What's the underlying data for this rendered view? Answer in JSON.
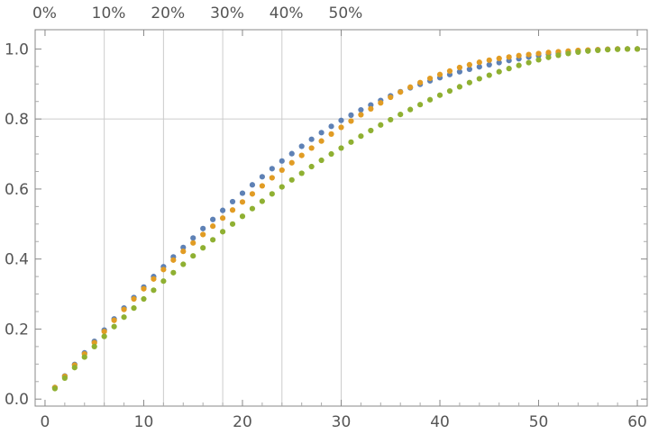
{
  "chart_data": {
    "type": "scatter",
    "title": "",
    "xlabel": "",
    "ylabel": "",
    "xlim": [
      -1,
      61
    ],
    "ylim": [
      -0.02,
      1.055
    ],
    "x_ticks": [
      0,
      10,
      20,
      30,
      40,
      50,
      60
    ],
    "x_tick_labels": [
      "0",
      "10",
      "20",
      "30",
      "40",
      "50",
      "60"
    ],
    "y_ticks": [
      0.0,
      0.2,
      0.4,
      0.6,
      0.8,
      1.0
    ],
    "y_tick_labels": [
      "0.0",
      "0.2",
      "0.4",
      "0.6",
      "0.8",
      "1.0"
    ],
    "top_axis": {
      "ticks": [
        0,
        6,
        12,
        18,
        24,
        30
      ],
      "labels": [
        "0%",
        "10%",
        "20%",
        "30%",
        "40%",
        "50%"
      ]
    },
    "gridlines": {
      "vertical_x": [
        6,
        12,
        18,
        24,
        30
      ],
      "horizontal_y": [
        0.8
      ]
    },
    "legend": "none",
    "series": [
      {
        "color": "#5e81b5",
        "x": [
          1,
          2,
          3,
          4,
          5,
          6,
          7,
          8,
          9,
          10,
          11,
          12,
          13,
          14,
          15,
          16,
          17,
          18,
          19,
          20,
          21,
          22,
          23,
          24,
          25,
          26,
          27,
          28,
          29,
          30,
          31,
          32,
          33,
          34,
          35,
          36,
          37,
          38,
          39,
          40,
          41,
          42,
          43,
          44,
          45,
          46,
          47,
          48,
          49,
          50,
          51,
          52,
          53,
          54,
          55,
          56,
          57,
          58,
          59,
          60
        ],
        "y": [
          0.033,
          0.066,
          0.099,
          0.132,
          0.165,
          0.197,
          0.229,
          0.26,
          0.29,
          0.32,
          0.35,
          0.378,
          0.406,
          0.433,
          0.46,
          0.487,
          0.513,
          0.539,
          0.564,
          0.588,
          0.612,
          0.635,
          0.658,
          0.68,
          0.701,
          0.722,
          0.742,
          0.761,
          0.779,
          0.796,
          0.811,
          0.826,
          0.84,
          0.853,
          0.866,
          0.878,
          0.889,
          0.899,
          0.909,
          0.918,
          0.927,
          0.935,
          0.942,
          0.949,
          0.955,
          0.961,
          0.967,
          0.972,
          0.977,
          0.981,
          0.985,
          0.988,
          0.991,
          0.994,
          0.996,
          0.998,
          0.999,
          1.0,
          1.0,
          1.0
        ]
      },
      {
        "color": "#e19c24",
        "x": [
          1,
          2,
          3,
          4,
          5,
          6,
          7,
          8,
          9,
          10,
          11,
          12,
          13,
          14,
          15,
          16,
          17,
          18,
          19,
          20,
          21,
          22,
          23,
          24,
          25,
          26,
          27,
          28,
          29,
          30,
          31,
          32,
          33,
          34,
          35,
          36,
          37,
          38,
          39,
          40,
          41,
          42,
          43,
          44,
          45,
          46,
          47,
          48,
          49,
          50,
          51,
          52,
          53,
          54,
          55,
          56,
          57,
          58,
          59,
          60
        ],
        "y": [
          0.033,
          0.065,
          0.097,
          0.129,
          0.161,
          0.193,
          0.225,
          0.256,
          0.286,
          0.315,
          0.343,
          0.37,
          0.397,
          0.422,
          0.446,
          0.47,
          0.494,
          0.517,
          0.54,
          0.563,
          0.586,
          0.609,
          0.632,
          0.654,
          0.675,
          0.696,
          0.717,
          0.737,
          0.757,
          0.776,
          0.794,
          0.812,
          0.829,
          0.846,
          0.862,
          0.877,
          0.891,
          0.904,
          0.916,
          0.927,
          0.937,
          0.947,
          0.955,
          0.962,
          0.968,
          0.973,
          0.977,
          0.981,
          0.984,
          0.987,
          0.99,
          0.992,
          0.994,
          0.996,
          0.997,
          0.998,
          0.999,
          1.0,
          1.0,
          1.0
        ]
      },
      {
        "color": "#8fb032",
        "x": [
          1,
          2,
          3,
          4,
          5,
          6,
          7,
          8,
          9,
          10,
          11,
          12,
          13,
          14,
          15,
          16,
          17,
          18,
          19,
          20,
          21,
          22,
          23,
          24,
          25,
          26,
          27,
          28,
          29,
          30,
          31,
          32,
          33,
          34,
          35,
          36,
          37,
          38,
          39,
          40,
          41,
          42,
          43,
          44,
          45,
          46,
          47,
          48,
          49,
          50,
          51,
          52,
          53,
          54,
          55,
          56,
          57,
          58,
          59,
          60
        ],
        "y": [
          0.03,
          0.06,
          0.09,
          0.12,
          0.15,
          0.179,
          0.207,
          0.234,
          0.26,
          0.286,
          0.311,
          0.337,
          0.361,
          0.385,
          0.409,
          0.432,
          0.455,
          0.478,
          0.5,
          0.522,
          0.544,
          0.565,
          0.586,
          0.606,
          0.626,
          0.645,
          0.664,
          0.682,
          0.7,
          0.717,
          0.734,
          0.751,
          0.767,
          0.783,
          0.798,
          0.813,
          0.827,
          0.841,
          0.855,
          0.868,
          0.88,
          0.892,
          0.904,
          0.915,
          0.925,
          0.935,
          0.944,
          0.953,
          0.961,
          0.969,
          0.976,
          0.982,
          0.987,
          0.991,
          0.994,
          0.996,
          0.998,
          0.999,
          1.0,
          1.0
        ]
      }
    ]
  }
}
